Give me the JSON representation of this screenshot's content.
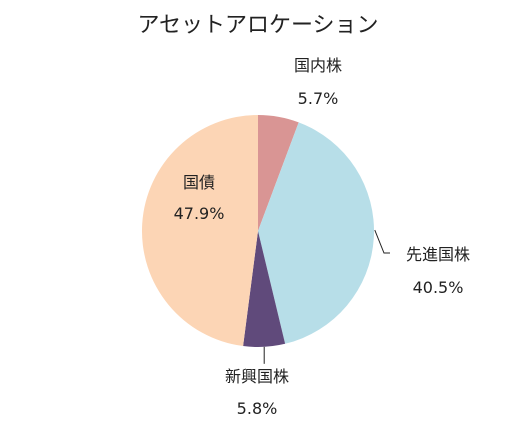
{
  "chart_data": {
    "type": "pie",
    "title": "アセットアロケーション",
    "slices": [
      {
        "label": "国内株",
        "value": 5.7,
        "display": "5.7%",
        "color": "#D99594"
      },
      {
        "label": "先進国株",
        "value": 40.5,
        "display": "40.5%",
        "color": "#B7DEE8"
      },
      {
        "label": "新興国株",
        "value": 5.8,
        "display": "5.8%",
        "color": "#604A7B"
      },
      {
        "label": "国債",
        "value": 47.9,
        "display": "47.9%",
        "color": "#FCD5B5"
      }
    ]
  }
}
